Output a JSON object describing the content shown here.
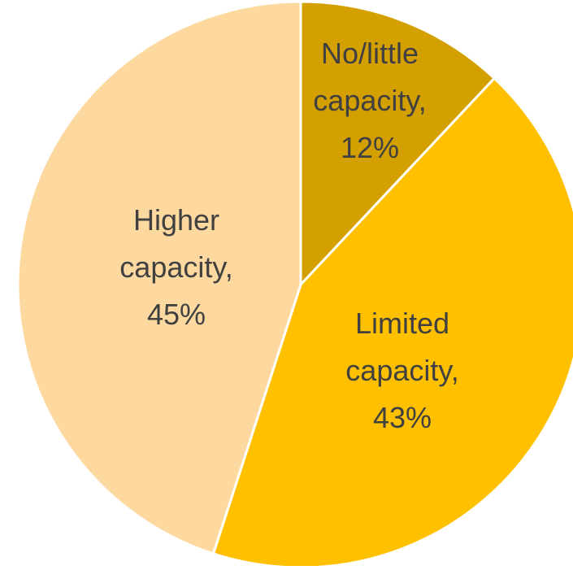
{
  "chart_data": {
    "type": "pie",
    "title": "",
    "legend": "none",
    "start_angle_deg": 0,
    "direction": "clockwise",
    "slices": [
      {
        "key": "no-little-capacity",
        "label_lines": [
          "No/little",
          "capacity,",
          "12%"
        ],
        "value": 12,
        "color": "#D4A000"
      },
      {
        "key": "limited-capacity",
        "label_lines": [
          "Limited",
          "capacity,",
          "43%"
        ],
        "value": 43,
        "color": "#FFC000"
      },
      {
        "key": "higher-capacity",
        "label_lines": [
          "Higher",
          "capacity,",
          "45%"
        ],
        "value": 45,
        "color": "#FDD9A0"
      }
    ],
    "slice_border_color": "#FFFFFF"
  }
}
